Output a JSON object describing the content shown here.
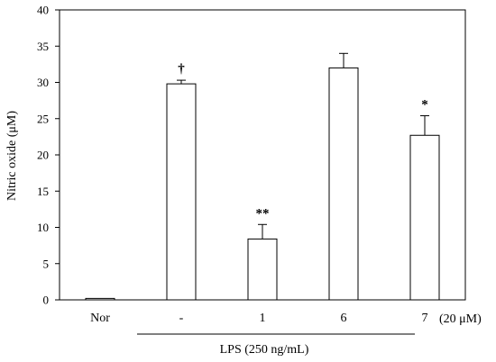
{
  "chart_data": {
    "type": "bar",
    "title": "",
    "ylabel": "Nitric oxide (μM)",
    "xlabel": "",
    "ylim": [
      0,
      40
    ],
    "yticks": [
      "0",
      "5",
      "10",
      "15",
      "20",
      "25",
      "30",
      "35",
      "40"
    ],
    "grid": false,
    "legend": "none",
    "categories": [
      "Nor",
      "-",
      "1",
      "6",
      "7"
    ],
    "values": [
      0.2,
      29.8,
      8.4,
      32.0,
      22.7
    ],
    "errors": [
      0,
      0.5,
      2.0,
      2.0,
      2.7
    ],
    "significance": [
      "",
      "†",
      "**",
      "",
      "*"
    ],
    "unit_label": "(20 μM)",
    "group_label": "LPS (250 ng/mL)",
    "bar_fill": "#ffffff",
    "bar_stroke": "#000000"
  }
}
